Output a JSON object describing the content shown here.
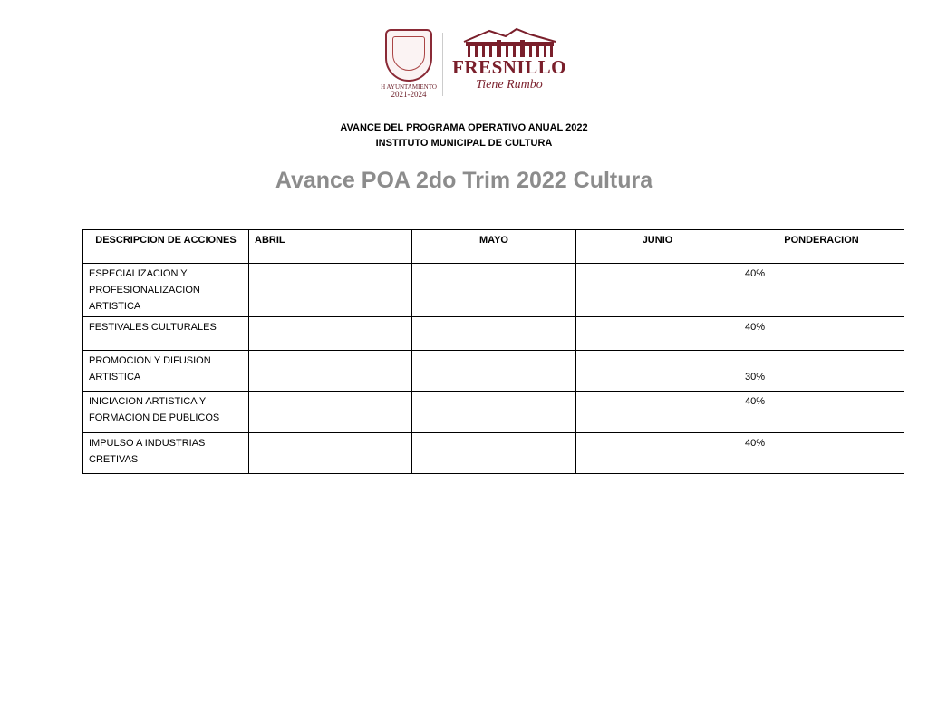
{
  "logo": {
    "seal_text_line1": "H AYUNTAMIENTO",
    "seal_text_line2": "2021-2024",
    "brand": "FRESNILLO",
    "tagline": "Tiene Rumbo",
    "brand_color": "#7a1f2b"
  },
  "header": {
    "line1": "AVANCE DEL PROGRAMA OPERATIVO ANUAL 2022",
    "line2": "INSTITUTO MUNICIPAL DE CULTURA",
    "title": "Avance POA 2do Trim 2022 Cultura"
  },
  "table": {
    "headers": [
      "DESCRIPCION DE ACCIONES",
      "ABRIL",
      "MAYO",
      "JUNIO",
      "PONDERACION"
    ],
    "rows": [
      {
        "descripcion": "ESPECIALIZACION Y PROFESIONALIZACION ARTISTICA",
        "abril": "",
        "mayo": "",
        "junio": "",
        "ponderacion": "40%"
      },
      {
        "descripcion": "FESTIVALES CULTURALES",
        "abril": "",
        "mayo": "",
        "junio": "",
        "ponderacion": "40%"
      },
      {
        "descripcion": "PROMOCION Y DIFUSION ARTISTICA",
        "abril": "",
        "mayo": "",
        "junio": "",
        "ponderacion": "30%"
      },
      {
        "descripcion": "INICIACION ARTISTICA Y FORMACION DE PUBLICOS",
        "abril": "",
        "mayo": "",
        "junio": "",
        "ponderacion": "40%"
      },
      {
        "descripcion": "IMPULSO A INDUSTRIAS CRETIVAS",
        "abril": "",
        "mayo": "",
        "junio": "",
        "ponderacion": "40%"
      }
    ]
  }
}
